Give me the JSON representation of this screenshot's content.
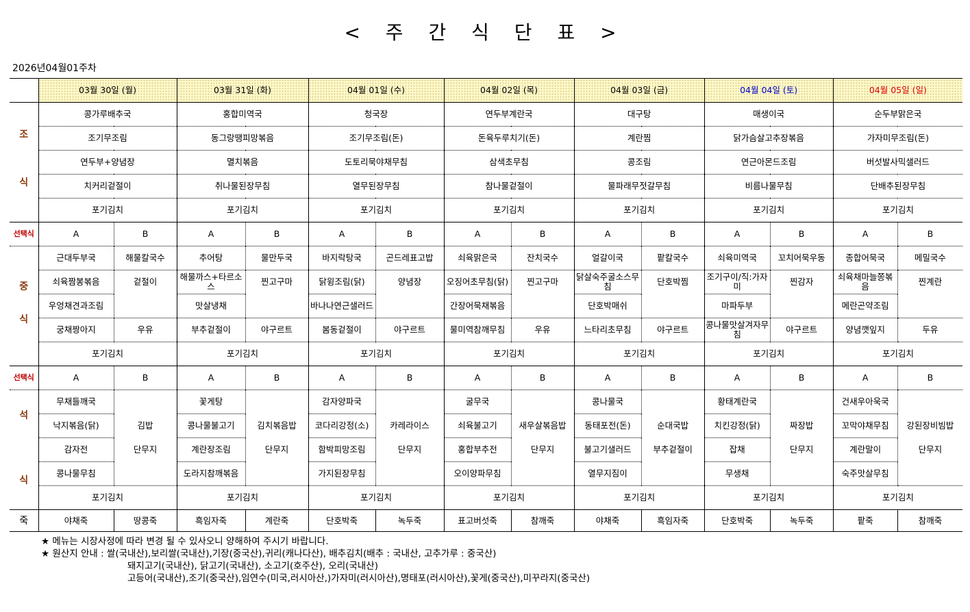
{
  "title": "< 주 간 식 단 표 >",
  "week": "2026년04월01주차",
  "colors": {
    "saturday": "#0000cc",
    "sunday": "#dd0000",
    "side_label": "#8b3a0f",
    "select_label": "#c00000",
    "header_bg": "#fff8c8"
  },
  "labels": {
    "breakfast": [
      "조",
      "식"
    ],
    "lunch": [
      "중",
      "식"
    ],
    "dinner": [
      "석",
      "식"
    ],
    "select": "선택식",
    "option_a": "A",
    "option_b": "B",
    "porridge": "죽"
  },
  "days": [
    {
      "date": "03월 30일 (월)",
      "color": "#000000"
    },
    {
      "date": "03월 31일 (화)",
      "color": "#000000"
    },
    {
      "date": "04월 01일 (수)",
      "color": "#000000"
    },
    {
      "date": "04월 02일 (목)",
      "color": "#000000"
    },
    {
      "date": "04월 03일 (금)",
      "color": "#000000"
    },
    {
      "date": "04월 04일 (토)",
      "color": "#0000cc"
    },
    {
      "date": "04월 05일 (일)",
      "color": "#dd0000"
    }
  ],
  "breakfast": [
    [
      "콩가루배추국",
      "홍합미역국",
      "청국장",
      "연두부계란국",
      "대구탕",
      "매생이국",
      "순두부맑은국"
    ],
    [
      "조기무조림",
      "동그랑땡피망볶음",
      "조기무조림(돈)",
      "돈육두루치기(돈)",
      "계란찜",
      "닭가슴살고추장볶음",
      "가자미무조림(돈)"
    ],
    [
      "연두부+양념장",
      "멸치볶음",
      "도토리묵야채무침",
      "삼색초무침",
      "콩조림",
      "연근아몬드조림",
      "버섯발사믹샐러드"
    ],
    [
      "치커리겉절이",
      "취나물된장무침",
      "열무된장무침",
      "참나물겉절이",
      "물파래무젓갈무침",
      "비름나물무침",
      "단배추된장무침"
    ],
    [
      "포기김치",
      "포기김치",
      "포기김치",
      "포기김치",
      "포기김치",
      "포기김치",
      "포기김치"
    ]
  ],
  "lunch": [
    {
      "a": [
        "근대두부국",
        "쇠육짬봉볶음",
        "우엉채견과조림",
        "궁채짱아지"
      ],
      "b": [
        "해물칼국수",
        "겉절이",
        "",
        "우유"
      ]
    },
    {
      "a": [
        "추어탕",
        "해물까스+타르소스",
        "맛살냉채",
        "부추겉절이"
      ],
      "b": [
        "물만두국",
        "찐고구마",
        "",
        "야구르트"
      ]
    },
    {
      "a": [
        "바지락탕국",
        "닭윙조림(닭)",
        "바나나연근샐러드",
        "봄동겉절이"
      ],
      "b": [
        "곤드레표고밥",
        "양념장",
        "",
        "야구르트"
      ]
    },
    {
      "a": [
        "쇠육맑은국",
        "오징어초무침(닭)",
        "간장어묵채볶음",
        "물미역참깨무침"
      ],
      "b": [
        "잔치국수",
        "찐고구마",
        "",
        "우유"
      ]
    },
    {
      "a": [
        "얼갈이국",
        "닭살숙주굴소스무침",
        "단호박매쉬",
        "느타리초무침"
      ],
      "b": [
        "팥칼국수",
        "단호박찜",
        "",
        "야구르트"
      ]
    },
    {
      "a": [
        "쇠육미역국",
        "조기구이/직:가자미",
        "마파두부",
        "콩나물맛살겨자무침"
      ],
      "b": [
        "꼬치어묵우동",
        "찐감자",
        "",
        "야구르트"
      ]
    },
    {
      "a": [
        "종합어묵국",
        "쇠육채마늘쫑볶음",
        "메란곤약조림",
        "양념깻잎지"
      ],
      "b": [
        "메밀국수",
        "찐계란",
        "",
        "두유"
      ]
    }
  ],
  "lunch_kimchi": [
    "포기김치",
    "포기김치",
    "포기김치",
    "포기김치",
    "포기김치",
    "포기김치",
    "포기김치"
  ],
  "dinner": [
    {
      "a": [
        "무채들깨국",
        "낙지볶음(닭)",
        "감자전",
        "콩나물무침"
      ],
      "b": [
        "",
        "김밥",
        "단무지",
        ""
      ]
    },
    {
      "a": [
        "꽃게탕",
        "콩나물불고기",
        "계란장조림",
        "도라지참깨볶음"
      ],
      "b": [
        "",
        "김치볶음밥",
        "단무지",
        ""
      ]
    },
    {
      "a": [
        "감자양파국",
        "코다리강정(소)",
        "함박피망조림",
        "가지된장무침"
      ],
      "b": [
        "",
        "카레라이스",
        "단무지",
        ""
      ]
    },
    {
      "a": [
        "굴무국",
        "쇠육불고기",
        "홍합부추전",
        "오이양파무침"
      ],
      "b": [
        "",
        "새우살볶음밥",
        "단무지",
        ""
      ]
    },
    {
      "a": [
        "콩나물국",
        "동태포전(돈)",
        "불고기샐러드",
        "열무지짐이"
      ],
      "b": [
        "",
        "순대국밥",
        "부추겉절이",
        ""
      ]
    },
    {
      "a": [
        "황태계란국",
        "치킨강정(닭)",
        "잡채",
        "무생채"
      ],
      "b": [
        "",
        "짜장밥",
        "단무지",
        ""
      ]
    },
    {
      "a": [
        "건새우아욱국",
        "꼬막야채무침",
        "계란말이",
        "숙주맛살무침"
      ],
      "b": [
        "",
        "강된장비빔밥",
        "단무지",
        ""
      ]
    }
  ],
  "dinner_kimchi": [
    "포기김치",
    "포기김치",
    "포기김치",
    "포기김치",
    "포기김치",
    "포기김치",
    "포기김치"
  ],
  "porridge": [
    [
      "야채죽",
      "땅콩죽"
    ],
    [
      "흑임자죽",
      "계란죽"
    ],
    [
      "단호박죽",
      "녹두죽"
    ],
    [
      "표고버섯죽",
      "참깨죽"
    ],
    [
      "야채죽",
      "흑임자죽"
    ],
    [
      "단호박죽",
      "녹두죽"
    ],
    [
      "팥죽",
      "참깨죽"
    ]
  ],
  "notes": {
    "line1": "★ 메뉴는 시장사정에 따라 변경 될 수 있사오니 양해하여 주시기 바랍니다.",
    "line2": "★ 원산지 안내 : 쌀(국내산),보리쌀(국내산),기장(중국산),귀리(캐나다산), 배추김치(배추 : 국내산,  고추가루 : 중국산)",
    "line3": "돼지고기(국내산), 닭고기(국내산), 소고기(호주산), 오리(국내산)",
    "line4": "고등어(국내산),조기(중국산),임연수(미국,러시아산,)가자미(러시아산),명태포(러시아산),꽃게(중국산),미꾸라지(중국산)"
  }
}
